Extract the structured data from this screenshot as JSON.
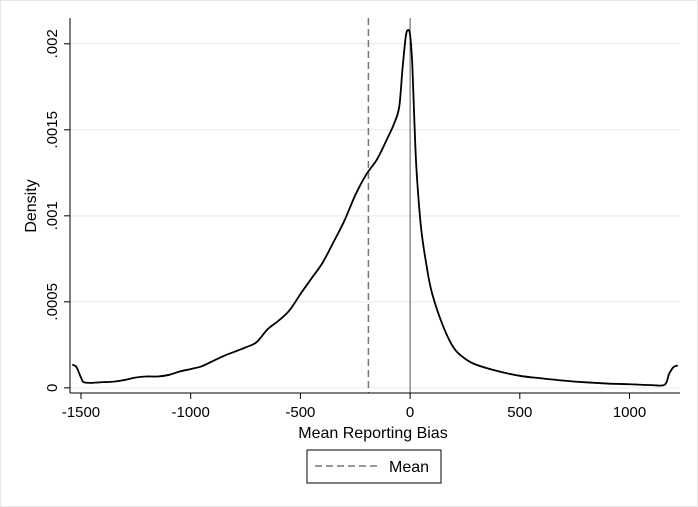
{
  "chart_data": {
    "type": "line",
    "title": "",
    "xlabel": "Mean Reporting Bias",
    "ylabel": "Density",
    "xlim": [
      -1550,
      1230
    ],
    "ylim": [
      -3e-05,
      0.00215
    ],
    "x_ticks": [
      -1500,
      -1000,
      -500,
      0,
      500,
      1000
    ],
    "x_tick_labels": [
      "-1500",
      "-1000",
      "-500",
      "0",
      "500",
      "1000"
    ],
    "y_ticks": [
      0,
      0.0005,
      0.001,
      0.0015,
      0.002
    ],
    "y_tick_labels": [
      "0",
      ".0005",
      ".001",
      ".0015",
      ".002"
    ],
    "grid": "horizontal",
    "legend_position": "bottom",
    "reference_lines": [
      {
        "x": -190,
        "style": "dashed",
        "label": "Mean"
      },
      {
        "x": 0,
        "style": "solid",
        "label": ""
      }
    ],
    "series": [
      {
        "x": [
          -1540,
          -1520,
          -1500,
          -1480,
          -1400,
          -1350,
          -1300,
          -1250,
          -1200,
          -1150,
          -1100,
          -1050,
          -1000,
          -950,
          -900,
          -850,
          -800,
          -750,
          -700,
          -650,
          -600,
          -550,
          -500,
          -450,
          -400,
          -350,
          -300,
          -250,
          -200,
          -150,
          -100,
          -75,
          -50,
          -35,
          -20,
          -10,
          0,
          10,
          20,
          30,
          50,
          75,
          100,
          150,
          200,
          250,
          300,
          400,
          500,
          600,
          700,
          800,
          900,
          1000,
          1100,
          1160,
          1180,
          1200,
          1220
        ],
        "y": [
          0.000135,
          0.00012,
          6e-05,
          3e-05,
          3.3e-05,
          3.6e-05,
          4.6e-05,
          6e-05,
          6.6e-05,
          6.6e-05,
          7.5e-05,
          9.5e-05,
          0.000109,
          0.000125,
          0.000155,
          0.000185,
          0.00021,
          0.000235,
          0.000265,
          0.00034,
          0.00039,
          0.00045,
          0.000545,
          0.000635,
          0.000725,
          0.000845,
          0.00097,
          0.00112,
          0.00124,
          0.00133,
          0.00146,
          0.00153,
          0.00163,
          0.00185,
          0.00204,
          0.00208,
          0.00205,
          0.00188,
          0.00153,
          0.00125,
          0.00093,
          0.00071,
          0.00055,
          0.00036,
          0.00023,
          0.00017,
          0.000135,
          9.7e-05,
          7e-05,
          5.5e-05,
          4.2e-05,
          3.2e-05,
          2.5e-05,
          2.1e-05,
          1.6e-05,
          1.8e-05,
          8e-05,
          0.00012,
          0.00013
        ]
      }
    ],
    "legend": [
      {
        "label": "Mean",
        "style": "dashed"
      }
    ]
  }
}
